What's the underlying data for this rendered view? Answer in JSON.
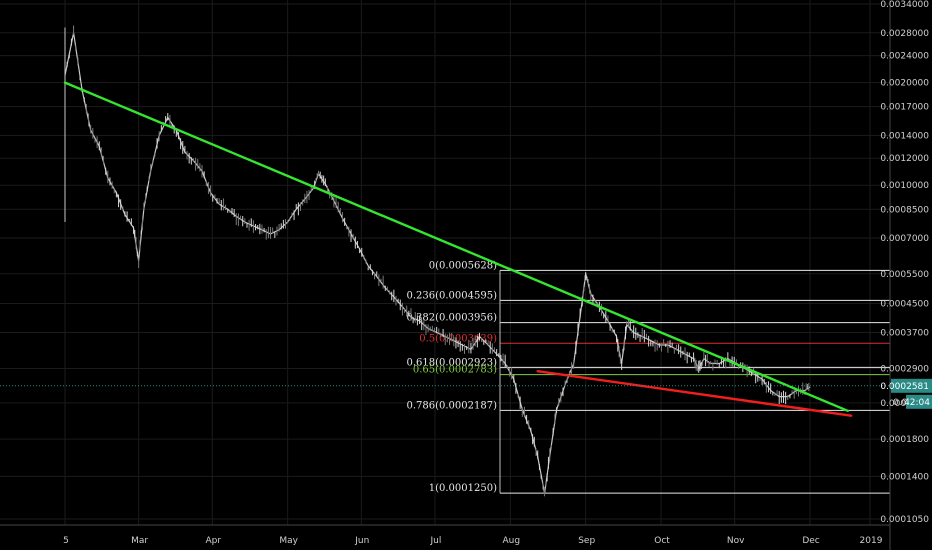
{
  "chart_data": {
    "type": "line",
    "title": "",
    "xlabel": "",
    "ylabel": "",
    "scale": "log",
    "grid": true,
    "legend": "none",
    "ylim": [
      9e-05,
      0.0034
    ],
    "x_ticks": [
      "5",
      "Mar",
      "Apr",
      "May",
      "Jun",
      "Jul",
      "Aug",
      "Sep",
      "Oct",
      "Nov",
      "Dec",
      "2019"
    ],
    "y_ticks": [
      "0.0034000",
      "0.0028000",
      "0.0024000",
      "0.0020000",
      "0.0017000",
      "0.0014000",
      "0.0012000",
      "0.0010000",
      "0.0008500",
      "0.0007000",
      "0.0005500",
      "0.0004500",
      "0.0003700",
      "0.0002900",
      "0.0002300",
      "0.0001800",
      "0.0001400",
      "0.0001050"
    ],
    "series": [
      {
        "color": "#c8c8c8",
        "points": [
          [
            0,
            0.0021
          ],
          [
            0.5,
            0.0028
          ],
          [
            1,
            0.0019
          ],
          [
            1.5,
            0.00145
          ],
          [
            2,
            0.0013
          ],
          [
            2.5,
            0.00105
          ],
          [
            3,
            0.00095
          ],
          [
            3.5,
            0.00082
          ],
          [
            4,
            0.00075
          ],
          [
            4.3,
            0.0006
          ],
          [
            4.6,
            0.00085
          ],
          [
            5,
            0.0011
          ],
          [
            5.5,
            0.0014
          ],
          [
            6,
            0.00158
          ],
          [
            6.5,
            0.00145
          ],
          [
            7,
            0.00125
          ],
          [
            7.5,
            0.00118
          ],
          [
            8,
            0.0011
          ],
          [
            8.5,
            0.00095
          ],
          [
            9,
            0.00088
          ],
          [
            9.5,
            0.00085
          ],
          [
            10,
            0.00081
          ],
          [
            10.5,
            0.00078
          ],
          [
            11,
            0.00076
          ],
          [
            11.5,
            0.00074
          ],
          [
            12,
            0.00072
          ],
          [
            12.5,
            0.00074
          ],
          [
            13,
            0.00078
          ],
          [
            13.5,
            0.00085
          ],
          [
            14,
            0.00091
          ],
          [
            14.5,
            0.00098
          ],
          [
            14.8,
            0.00108
          ],
          [
            15.2,
            0.00101
          ],
          [
            15.7,
            0.0009
          ],
          [
            16.2,
            0.0008
          ],
          [
            16.7,
            0.00072
          ],
          [
            17.2,
            0.00065
          ],
          [
            17.7,
            0.00058
          ],
          [
            18.2,
            0.00054
          ],
          [
            18.7,
            0.0005
          ],
          [
            19.2,
            0.00047
          ],
          [
            19.7,
            0.00044
          ],
          [
            20.2,
            0.00041
          ],
          [
            20.7,
            0.0004
          ],
          [
            21.2,
            0.00038
          ],
          [
            21.7,
            0.00037
          ],
          [
            22.2,
            0.00036
          ],
          [
            22.7,
            0.00035
          ],
          [
            23.2,
            0.00034
          ],
          [
            23.7,
            0.00033
          ],
          [
            24.2,
            0.00036
          ],
          [
            24.7,
            0.00034
          ],
          [
            25.2,
            0.00032
          ],
          [
            25.7,
            0.0003
          ],
          [
            26.2,
            0.00027
          ],
          [
            26.7,
            0.00022
          ],
          [
            27.2,
            0.00019
          ],
          [
            27.6,
            0.00016
          ],
          [
            28,
            0.000125
          ],
          [
            28.3,
            0.00016
          ],
          [
            28.7,
            0.00022
          ],
          [
            29.2,
            0.00026
          ],
          [
            29.7,
            0.0003
          ],
          [
            30.2,
            0.00046
          ],
          [
            30.4,
            0.00055
          ],
          [
            30.7,
            0.00048
          ],
          [
            31.2,
            0.00044
          ],
          [
            31.7,
            0.0004
          ],
          [
            32.2,
            0.00036
          ],
          [
            32.5,
            0.0003
          ],
          [
            32.8,
            0.00039
          ],
          [
            33.2,
            0.00037
          ],
          [
            33.7,
            0.00036
          ],
          [
            34.2,
            0.00035
          ],
          [
            34.7,
            0.00034
          ],
          [
            35.2,
            0.00034
          ],
          [
            35.7,
            0.00033
          ],
          [
            36.2,
            0.00032
          ],
          [
            36.7,
            0.00031
          ],
          [
            37,
            0.00029
          ],
          [
            37.3,
            0.00031
          ],
          [
            37.7,
            0.0003
          ],
          [
            38.2,
            0.0003
          ],
          [
            38.7,
            0.00031
          ],
          [
            39.2,
            0.0003
          ],
          [
            39.7,
            0.00029
          ],
          [
            40.2,
            0.00028
          ],
          [
            40.7,
            0.00027
          ],
          [
            41.2,
            0.00025
          ],
          [
            41.7,
            0.00024
          ],
          [
            42.2,
            0.00024
          ],
          [
            42.7,
            0.00025
          ],
          [
            43.2,
            0.00025
          ],
          [
            43.5,
            0.000256
          ]
        ]
      }
    ],
    "trendlines": [
      {
        "color": "#34e62f",
        "points": [
          [
            0,
            0.002
          ],
          [
            45.7,
            0.000218
          ]
        ]
      },
      {
        "color": "#f01f1f",
        "points": [
          [
            27.6,
            0.000285
          ],
          [
            45.9,
            0.000211
          ]
        ]
      }
    ],
    "fib_levels": [
      {
        "label": "0(0.0005628)",
        "value": 0.0005628,
        "color": "#e8e8e8"
      },
      {
        "label": "0.236(0.0004595)",
        "value": 0.0004595,
        "color": "#e8e8e8"
      },
      {
        "label": "0.382(0.0003956)",
        "value": 0.0003956,
        "color": "#e8e8e8"
      },
      {
        "label": "0.5(0.0003439)",
        "value": 0.0003439,
        "color": "#e03030"
      },
      {
        "label": "0.618(0.0002923)",
        "value": 0.0002923,
        "color": "#e8e8e8"
      },
      {
        "label": "0.65(0.0002783)",
        "value": 0.0002783,
        "color": "#7fcf3a"
      },
      {
        "label": "0.786(0.0002187)",
        "value": 0.0002187,
        "color": "#e8e8e8"
      },
      {
        "label": "1(0.0001250)",
        "value": 0.000125,
        "color": "#e8e8e8"
      }
    ],
    "last_price": {
      "value": "0.0002581",
      "color": "#2a8a86"
    },
    "countdown": {
      "value": "42:04",
      "color": "#2a8a86"
    },
    "hidden_label": "0.0002"
  }
}
